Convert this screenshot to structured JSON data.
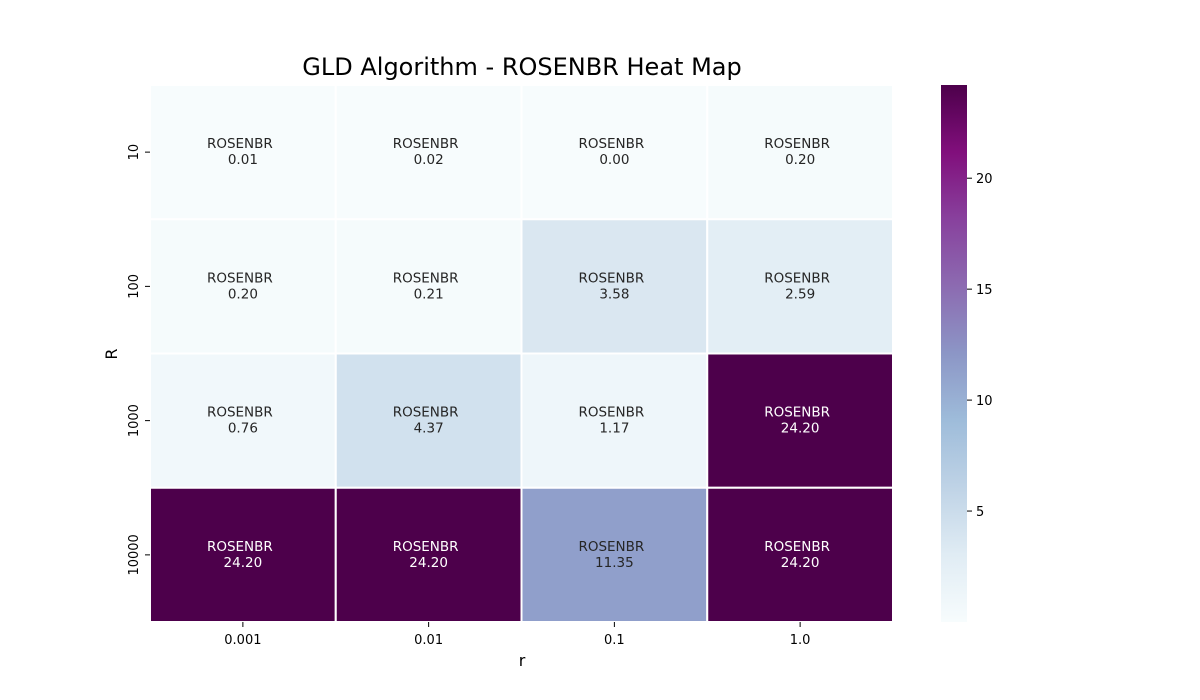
{
  "chart_data": {
    "type": "heatmap",
    "title": "GLD Algorithm - ROSENBR Heat Map",
    "xlabel": "r",
    "ylabel": "R",
    "x_categories": [
      "0.001",
      "0.01",
      "0.1",
      "1.0"
    ],
    "y_categories": [
      "10",
      "100",
      "1000",
      "10000"
    ],
    "cell_label": "ROSENBR",
    "values": [
      [
        0.01,
        0.02,
        0.0,
        0.2
      ],
      [
        0.2,
        0.21,
        3.58,
        2.59
      ],
      [
        0.76,
        4.37,
        1.17,
        24.2
      ],
      [
        24.2,
        24.2,
        11.35,
        24.2
      ]
    ],
    "value_labels": [
      [
        "0.01",
        "0.02",
        "0.00",
        "0.20"
      ],
      [
        "0.20",
        "0.21",
        "3.58",
        "2.59"
      ],
      [
        "0.76",
        "4.37",
        "1.17",
        "24.20"
      ],
      [
        "24.20",
        "24.20",
        "11.35",
        "24.20"
      ]
    ],
    "colormap": "BuPu",
    "colorbar": {
      "vmin": 0.0,
      "vmax": 24.2,
      "ticks": [
        5,
        10,
        15,
        20
      ],
      "tick_labels": [
        "5",
        "10",
        "15",
        "20"
      ]
    },
    "grid": true
  }
}
